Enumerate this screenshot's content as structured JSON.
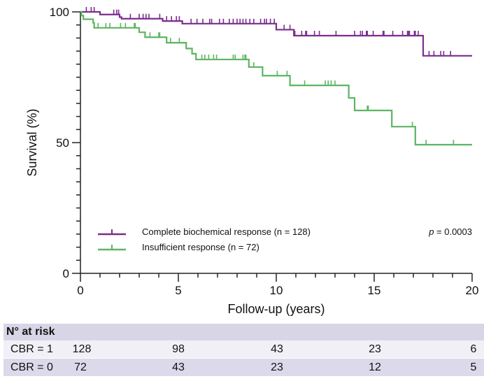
{
  "chart_data": {
    "type": "line",
    "subtype": "kaplan-meier",
    "xlabel": "Follow-up (years)",
    "ylabel": "Survival (%)",
    "xlim": [
      0,
      20
    ],
    "ylim": [
      0,
      100
    ],
    "xticks": [
      "0",
      "5",
      "10",
      "15",
      "20"
    ],
    "yticks": [
      "0",
      "50",
      "100"
    ],
    "grid": false,
    "legend_position": "bottom-left",
    "annotation": {
      "p_prefix": "p",
      "p_value": " = 0.0003"
    },
    "series": [
      {
        "name": "Complete biochemical response (n = 128)",
        "color": "#7b2d8e",
        "steps": [
          [
            0,
            100
          ],
          [
            1.0,
            99.0
          ],
          [
            2.0,
            98.0
          ],
          [
            2.1,
            97.4
          ],
          [
            4.2,
            96.5
          ],
          [
            5.2,
            95.5
          ],
          [
            10.0,
            93.2
          ],
          [
            10.9,
            90.9
          ],
          [
            17.5,
            83.2
          ],
          [
            20,
            83.2
          ]
        ],
        "censored": [
          0.3,
          0.55,
          0.7,
          1.7,
          1.85,
          1.95,
          2.55,
          3.0,
          3.2,
          3.35,
          3.5,
          4.05,
          4.4,
          4.65,
          4.9,
          5.05,
          5.65,
          5.95,
          6.25,
          6.6,
          6.7,
          7.1,
          7.3,
          7.6,
          7.8,
          8.0,
          8.15,
          8.3,
          8.45,
          8.65,
          8.85,
          9.2,
          9.4,
          9.5,
          9.7,
          9.9,
          10.4,
          10.7,
          10.95,
          11.3,
          11.5,
          11.55,
          11.95,
          12.2,
          13.05,
          14.0,
          14.3,
          14.4,
          14.6,
          14.65,
          14.95,
          15.45,
          15.5,
          15.95,
          16.45,
          16.7,
          16.75,
          16.8,
          17.05,
          17.1,
          17.25,
          17.8,
          18.05,
          18.4,
          18.55,
          18.9
        ]
      },
      {
        "name": "Insufficient response (n = 72)",
        "color": "#5db562",
        "steps": [
          [
            0,
            100
          ],
          [
            0.05,
            98.6
          ],
          [
            0.15,
            97.2
          ],
          [
            0.65,
            95.8
          ],
          [
            0.7,
            93.9
          ],
          [
            3.0,
            92.2
          ],
          [
            3.3,
            90.3
          ],
          [
            4.4,
            88.2
          ],
          [
            5.4,
            86.0
          ],
          [
            5.7,
            84.0
          ],
          [
            5.9,
            81.8
          ],
          [
            8.6,
            78.9
          ],
          [
            9.3,
            75.6
          ],
          [
            10.7,
            71.9
          ],
          [
            13.7,
            67.1
          ],
          [
            14.0,
            62.3
          ],
          [
            15.9,
            56.1
          ],
          [
            17.1,
            49.2
          ],
          [
            20,
            49.2
          ]
        ],
        "censored": [
          0.9,
          1.3,
          1.5,
          2.05,
          2.3,
          2.75,
          2.8,
          3.55,
          4.0,
          4.05,
          4.6,
          5.05,
          6.2,
          6.35,
          6.55,
          6.8,
          6.95,
          7.8,
          7.9,
          8.3,
          8.4,
          8.45,
          8.85,
          10.05,
          10.55,
          11.45,
          12.5,
          12.65,
          12.8,
          13.0,
          14.65,
          14.7,
          16.95,
          17.65,
          19.05
        ]
      }
    ]
  },
  "risk_table": {
    "title": "N° at risk",
    "rows": [
      {
        "label": "CBR = 1",
        "values": [
          "128",
          "98",
          "43",
          "23",
          "6"
        ]
      },
      {
        "label": "CBR = 0",
        "values": [
          "72",
          "43",
          "23",
          "12",
          "5"
        ]
      }
    ]
  }
}
